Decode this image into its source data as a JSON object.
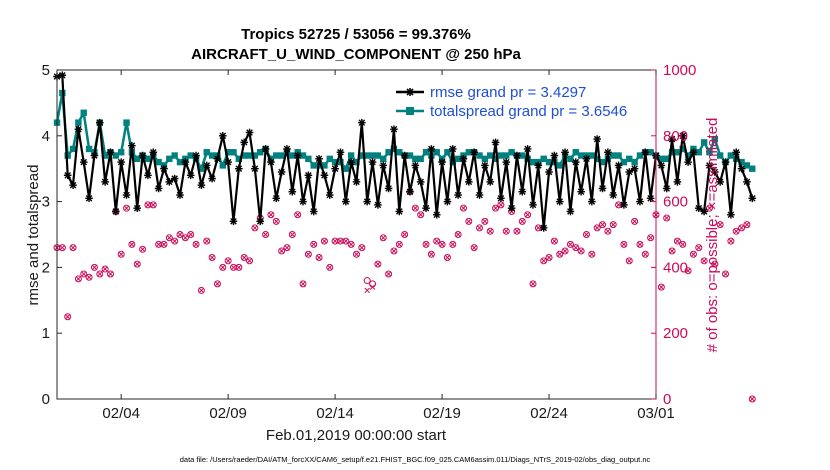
{
  "chart_data": {
    "type": "line",
    "title": "Tropics 52725 / 53056 = 99.376%",
    "subtitle": "AIRCRAFT_U_WIND_COMPONENT @ 250 hPa",
    "xlabel": "Feb.01,2019 00:00:00 start",
    "ylabel": "rmse and totalspread",
    "y2label": "# of obs: o=possible; ×=assimilated",
    "footnote": "data file: /Users/raeder/DAI/ATM_forcXX/CAM6_setup/f.e21.FHIST_BGC.f09_025.CAM6assim.011/Diags_NTrS_2019-02/obs_diag_output.nc",
    "x_ticks": [
      "02/04",
      "02/09",
      "02/14",
      "02/19",
      "02/24",
      "03/01"
    ],
    "y_ticks": [
      "0",
      "1",
      "2",
      "3",
      "4",
      "5"
    ],
    "y2_ticks": [
      "0",
      "200",
      "400",
      "600",
      "800",
      "1000"
    ],
    "ylim": [
      0,
      5
    ],
    "y2lim": [
      0,
      1000
    ],
    "xlim": [
      1,
      29
    ],
    "x_start": 1,
    "x_step": 0.25,
    "series": [
      {
        "name": "rmse grand pr = 3.4297",
        "color": "#000000",
        "marker": "asterisk",
        "values": [
          4.9,
          4.92,
          3.4,
          3.25,
          4.1,
          3.6,
          3.05,
          3.7,
          4.2,
          3.3,
          3.75,
          2.85,
          3.6,
          3.1,
          3.85,
          2.9,
          3.7,
          3.4,
          3.75,
          3.2,
          3.5,
          3.3,
          3.35,
          3.1,
          3.6,
          3.4,
          3.7,
          3.25,
          3.55,
          3.35,
          3.65,
          4.0,
          3.6,
          2.7,
          3.5,
          3.9,
          4.05,
          3.5,
          2.7,
          3.8,
          3.6,
          3.05,
          3.45,
          3.8,
          3.15,
          3.7,
          3.0,
          3.4,
          2.85,
          3.65,
          3.4,
          3.1,
          3.5,
          3.75,
          3.0,
          3.6,
          3.3,
          4.2,
          3.0,
          3.6,
          2.95,
          3.55,
          3.2,
          4.1,
          2.85,
          3.7,
          3.15,
          3.55,
          3.3,
          2.9,
          3.8,
          2.8,
          3.6,
          3.0,
          3.8,
          3.1,
          3.65,
          3.3,
          3.75,
          3.1,
          3.55,
          3.3,
          3.9,
          3.05,
          3.6,
          2.9,
          3.7,
          3.15,
          3.8,
          2.95,
          3.55,
          2.6,
          3.45,
          3.7,
          3.0,
          3.75,
          2.85,
          3.6,
          3.15,
          3.65,
          3.0,
          3.95,
          3.2,
          3.75,
          3.1,
          3.55,
          2.95,
          3.45,
          3.5,
          3.0,
          3.75,
          3.05,
          3.7,
          3.55,
          3.2,
          3.95,
          3.3,
          4.0,
          3.6,
          3.75,
          2.9,
          2.85,
          3.55,
          3.45,
          3.3,
          3.6,
          2.8,
          3.75,
          3.5,
          3.3,
          3.05
        ]
      },
      {
        "name": "totalspread grand pr = 3.6546",
        "color": "#00807f",
        "marker": "square",
        "values": [
          4.2,
          4.65,
          3.7,
          3.8,
          4.2,
          4.35,
          3.8,
          3.75,
          4.2,
          3.7,
          3.75,
          3.7,
          3.75,
          4.2,
          3.75,
          3.65,
          3.7,
          3.65,
          3.7,
          3.6,
          3.55,
          3.65,
          3.7,
          3.6,
          3.65,
          3.7,
          3.65,
          3.5,
          3.75,
          3.7,
          3.7,
          3.55,
          3.75,
          3.75,
          3.65,
          3.7,
          3.7,
          3.7,
          3.75,
          3.8,
          3.65,
          3.7,
          3.7,
          3.75,
          3.7,
          3.75,
          3.7,
          3.65,
          3.55,
          3.55,
          3.55,
          3.65,
          3.6,
          3.6,
          3.5,
          3.7,
          3.6,
          3.7,
          3.7,
          3.7,
          3.7,
          3.65,
          3.75,
          3.8,
          3.75,
          3.7,
          3.7,
          3.65,
          3.65,
          3.75,
          3.7,
          3.75,
          3.65,
          3.75,
          3.6,
          3.65,
          3.7,
          3.75,
          3.75,
          3.7,
          3.65,
          3.7,
          3.65,
          3.7,
          3.7,
          3.75,
          3.7,
          3.7,
          3.65,
          3.6,
          3.6,
          3.65,
          3.6,
          3.6,
          3.55,
          3.7,
          3.65,
          3.75,
          3.7,
          3.7,
          3.7,
          3.65,
          3.6,
          3.65,
          3.7,
          3.7,
          3.6,
          3.65,
          3.6,
          3.7,
          3.75,
          3.75,
          3.7,
          3.65,
          3.65,
          3.75,
          3.75,
          3.8,
          3.7,
          3.8,
          3.75,
          3.9,
          3.75,
          3.95,
          3.7,
          3.6,
          3.7,
          3.65,
          3.6,
          3.55,
          3.5
        ]
      },
      {
        "name": "# obs possible",
        "axis": "right",
        "color": "#cc0a59",
        "marker": "circle",
        "values": [
          460,
          460,
          250,
          460,
          365,
          380,
          370,
          400,
          380,
          395,
          380,
          570,
          440,
          580,
          470,
          410,
          455,
          590,
          590,
          470,
          470,
          490,
          480,
          500,
          490,
          500,
          470,
          330,
          480,
          430,
          350,
          400,
          420,
          400,
          400,
          430,
          420,
          520,
          550,
          500,
          560,
          540,
          450,
          460,
          500,
          560,
          350,
          440,
          470,
          430,
          480,
          400,
          480,
          480,
          480,
          470,
          440,
          460,
          360,
          350,
          410,
          490,
          380,
          450,
          470,
          500,
          630,
          580,
          560,
          470,
          440,
          480,
          470,
          430,
          470,
          500,
          580,
          540,
          460,
          520,
          540,
          510,
          580,
          590,
          510,
          570,
          510,
          540,
          560,
          350,
          520,
          420,
          430,
          480,
          440,
          450,
          470,
          460,
          450,
          500,
          440,
          520,
          530,
          510,
          530,
          590,
          470,
          420,
          540,
          470,
          440,
          490,
          560,
          340,
          550,
          450,
          480,
          470,
          390,
          440,
          460,
          420,
          580,
          410,
          530,
          380,
          480,
          510,
          520,
          530,
          0
        ]
      },
      {
        "name": "# obs assimilated",
        "axis": "right",
        "color": "#cc0a59",
        "marker": "cross",
        "values": [
          460,
          460,
          250,
          460,
          365,
          380,
          370,
          400,
          380,
          395,
          380,
          570,
          440,
          580,
          470,
          410,
          455,
          590,
          590,
          470,
          470,
          490,
          480,
          500,
          490,
          500,
          470,
          330,
          480,
          430,
          350,
          400,
          420,
          400,
          400,
          430,
          420,
          520,
          550,
          500,
          560,
          540,
          450,
          460,
          500,
          560,
          350,
          440,
          470,
          430,
          480,
          400,
          480,
          480,
          480,
          470,
          440,
          460,
          330,
          340,
          410,
          490,
          380,
          450,
          470,
          500,
          630,
          580,
          560,
          470,
          440,
          480,
          470,
          430,
          470,
          500,
          580,
          540,
          460,
          520,
          540,
          510,
          580,
          590,
          510,
          570,
          510,
          540,
          560,
          350,
          520,
          420,
          430,
          480,
          440,
          450,
          470,
          460,
          450,
          500,
          440,
          520,
          530,
          510,
          530,
          590,
          470,
          420,
          540,
          470,
          440,
          490,
          560,
          340,
          550,
          450,
          480,
          470,
          390,
          440,
          460,
          420,
          580,
          410,
          530,
          380,
          480,
          510,
          520,
          530,
          0
        ]
      }
    ]
  }
}
